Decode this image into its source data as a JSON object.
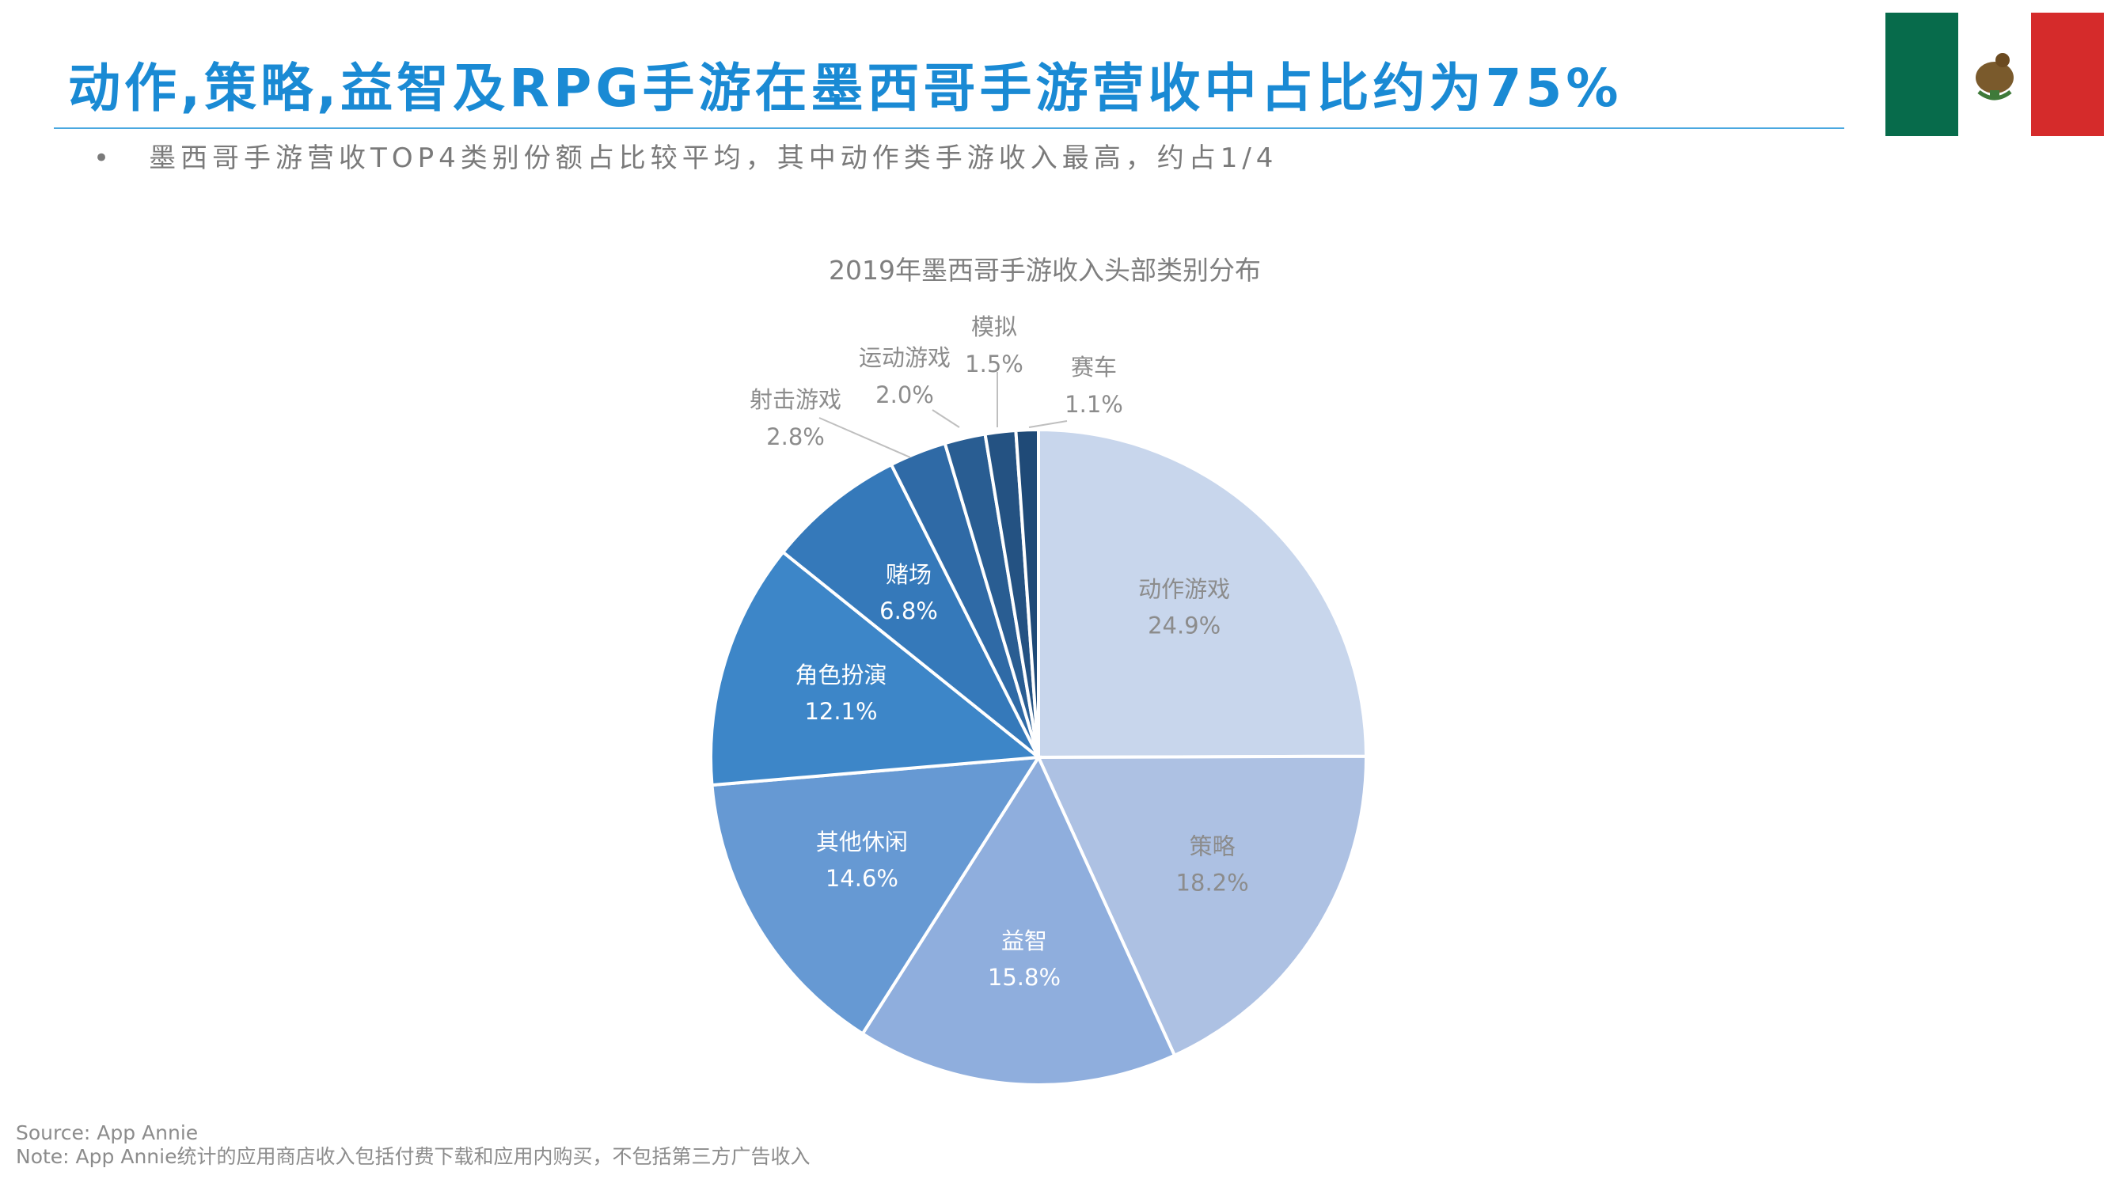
{
  "header": {
    "headline": "动作,策略,益智及RPG手游在墨西哥手游营收中占比约为75%",
    "bullet": "•",
    "subline": "墨西哥手游营收TOP4类别份额占比较平均，其中动作类手游收入最高，约占1/4"
  },
  "colors": {
    "accent": "#1a8ad4",
    "flag_green": "#076b4b",
    "flag_red": "#d52b2b"
  },
  "chart_data": {
    "type": "pie",
    "title": "2019年墨西哥手游收入头部类别分布",
    "slices": [
      {
        "label": "动作游戏",
        "value": 24.9,
        "text": "24.9%",
        "color": "#c8d6ec",
        "text_color": "#8c8c8c"
      },
      {
        "label": "策略",
        "value": 18.2,
        "text": "18.2%",
        "color": "#adc1e3",
        "text_color": "#8c8c8c"
      },
      {
        "label": "益智",
        "value": 15.8,
        "text": "15.8%",
        "color": "#8faedd",
        "text_color": "#ffffff"
      },
      {
        "label": "其他休闲",
        "value": 14.6,
        "text": "14.6%",
        "color": "#6699d3",
        "text_color": "#ffffff"
      },
      {
        "label": "角色扮演",
        "value": 12.1,
        "text": "12.1%",
        "color": "#3d86c8",
        "text_color": "#ffffff"
      },
      {
        "label": "赌场",
        "value": 6.8,
        "text": "6.8%",
        "color": "#3579ba",
        "text_color": "#ffffff"
      },
      {
        "label": "射击游戏",
        "value": 2.8,
        "text": "2.8%",
        "color": "#2f6aa6",
        "text_color": "#8c8c8c"
      },
      {
        "label": "运动游戏",
        "value": 2.0,
        "text": "2.0%",
        "color": "#295d92",
        "text_color": "#8c8c8c"
      },
      {
        "label": "模拟",
        "value": 1.5,
        "text": "1.5%",
        "color": "#245282",
        "text_color": "#8c8c8c"
      },
      {
        "label": "赛车",
        "value": 1.1,
        "text": "1.1%",
        "color": "#1f4a77",
        "text_color": "#8c8c8c"
      }
    ]
  },
  "footer": {
    "source": "Source: App Annie",
    "note": "Note: App Annie统计的应用商店收入包括付费下载和应用内购买，不包括第三方广告收入"
  }
}
